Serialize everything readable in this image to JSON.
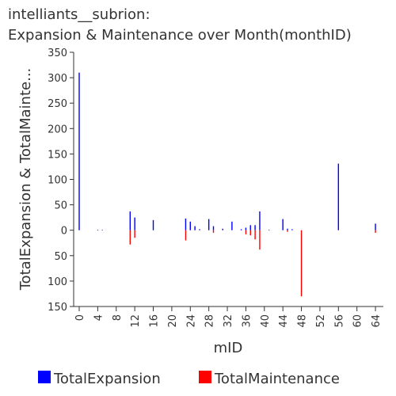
{
  "chart_data": {
    "type": "bar",
    "title": [
      "intelliants__subrion:",
      "Expansion & Maintenance over Month(monthID)"
    ],
    "x_label": "mID",
    "y_label": "TotalExpansion & TotalMainte...",
    "x": [
      0,
      4,
      5,
      11,
      12,
      16,
      23,
      24,
      25,
      26,
      28,
      29,
      31,
      33,
      35,
      36,
      37,
      38,
      39,
      41,
      44,
      45,
      46,
      48,
      56,
      64
    ],
    "series": [
      {
        "name": "TotalExpansion",
        "color": "#0000ff",
        "values": [
          310,
          1,
          1,
          37,
          25,
          20,
          23,
          17,
          8,
          2,
          22,
          8,
          3,
          17,
          2,
          5,
          10,
          10,
          37,
          1,
          22,
          3,
          2,
          0,
          131,
          13
        ]
      },
      {
        "name": "TotalMaintenance",
        "color": "#ff0000",
        "values": [
          0,
          0,
          0,
          -28,
          -15,
          0,
          -20,
          0,
          0,
          0,
          0,
          -5,
          0,
          0,
          0,
          -8,
          -10,
          -18,
          -38,
          0,
          0,
          -3,
          0,
          -130,
          0,
          -5
        ]
      }
    ],
    "xlim": [
      -1.2,
      65.7
    ],
    "xticks": [
      0,
      4,
      8,
      12,
      16,
      20,
      24,
      28,
      32,
      36,
      40,
      44,
      48,
      52,
      56,
      60,
      64
    ],
    "ylim": [
      -150,
      350
    ],
    "yticks": [
      350,
      300,
      250,
      200,
      150,
      100,
      50,
      0,
      {
        "value": -50,
        "label": "50"
      },
      {
        "value": -100,
        "label": "100"
      },
      {
        "value": -150,
        "label": "150"
      }
    ],
    "legend": "bottom"
  }
}
